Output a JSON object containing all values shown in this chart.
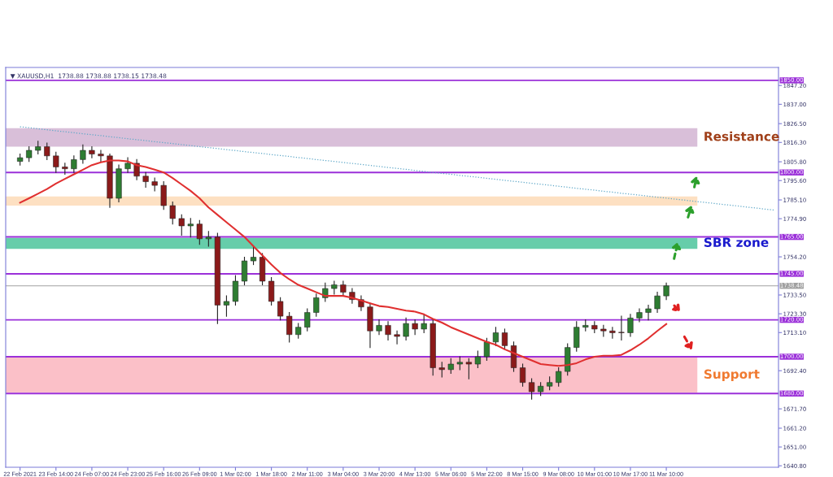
{
  "chart_data": {
    "type": "candlestick",
    "categories": [
      "22 Feb 2021",
      null,
      null,
      null,
      "23 Feb 14:00",
      null,
      null,
      null,
      "24 Feb 07:00",
      null,
      null,
      null,
      "24 Feb 23:00",
      null,
      null,
      null,
      "25 Feb 16:00",
      null,
      null,
      null,
      "26 Feb 09:00",
      null,
      null,
      null,
      "1 Mar 02:00",
      null,
      null,
      null,
      "1 Mar 18:00",
      null,
      null,
      null,
      "2 Mar 11:00",
      null,
      null,
      null,
      "3 Mar 04:00",
      null,
      null,
      null,
      "3 Mar 20:00",
      null,
      null,
      null,
      "4 Mar 13:00",
      null,
      null,
      null,
      "5 Mar 06:00",
      null,
      null,
      null,
      "5 Mar 22:00",
      null,
      null,
      null,
      "8 Mar 15:00",
      null,
      null,
      null,
      "9 Mar 08:00",
      null,
      null,
      null,
      "10 Mar 01:00",
      null,
      null,
      null,
      "10 Mar 17:00",
      null,
      null,
      null,
      "11 Mar 10:00",
      null,
      null,
      null,
      null,
      null,
      null,
      null,
      null,
      null,
      null,
      null,
      null
    ],
    "series": [
      {
        "ohlc": [
          [
            1806,
            1810,
            1804,
            1808
          ],
          [
            1808,
            1814,
            1806,
            1812
          ],
          [
            1812,
            1817,
            1810,
            1814
          ],
          [
            1814,
            1816,
            1807,
            1809
          ],
          [
            1809,
            1811,
            1800,
            1803
          ],
          [
            1803,
            1805,
            1799,
            1802
          ],
          [
            1802,
            1809,
            1800,
            1807
          ],
          [
            1807,
            1815,
            1805,
            1812
          ],
          [
            1812,
            1814,
            1808,
            1810
          ],
          [
            1810,
            1812,
            1806,
            1809
          ],
          [
            1809,
            1810,
            1781,
            1786
          ],
          [
            1786,
            1804,
            1784,
            1802
          ],
          [
            1802,
            1808,
            1800,
            1805
          ],
          [
            1805,
            1807,
            1796,
            1798
          ],
          [
            1798,
            1800,
            1792,
            1795
          ],
          [
            1795,
            1797,
            1790,
            1793
          ],
          [
            1793,
            1795,
            1780,
            1782
          ],
          [
            1782,
            1784,
            1772,
            1775
          ],
          [
            1775,
            1777,
            1766,
            1771
          ],
          [
            1771,
            1775,
            1765,
            1772
          ],
          [
            1772,
            1774,
            1761,
            1764
          ],
          [
            1764,
            1768,
            1760,
            1765
          ],
          [
            1765,
            1767,
            1718,
            1728
          ],
          [
            1728,
            1733,
            1722,
            1730
          ],
          [
            1730,
            1744,
            1728,
            1741
          ],
          [
            1741,
            1754,
            1739,
            1752
          ],
          [
            1752,
            1760,
            1750,
            1754
          ],
          [
            1754,
            1756,
            1739,
            1741
          ],
          [
            1741,
            1743,
            1728,
            1730
          ],
          [
            1730,
            1732,
            1720,
            1722
          ],
          [
            1722,
            1724,
            1708,
            1712
          ],
          [
            1712,
            1718,
            1710,
            1716
          ],
          [
            1716,
            1726,
            1714,
            1724
          ],
          [
            1724,
            1734,
            1722,
            1732
          ],
          [
            1732,
            1740,
            1730,
            1737
          ],
          [
            1737,
            1741,
            1734,
            1739
          ],
          [
            1739,
            1741,
            1733,
            1735
          ],
          [
            1735,
            1737,
            1729,
            1731
          ],
          [
            1731,
            1733,
            1725,
            1727
          ],
          [
            1727,
            1729,
            1705,
            1714
          ],
          [
            1714,
            1720,
            1712,
            1717
          ],
          [
            1717,
            1719,
            1709,
            1712
          ],
          [
            1712,
            1714,
            1707,
            1711
          ],
          [
            1711,
            1721,
            1709,
            1718
          ],
          [
            1718,
            1720,
            1712,
            1715
          ],
          [
            1715,
            1723,
            1713,
            1718
          ],
          [
            1718,
            1720,
            1690,
            1694
          ],
          [
            1694,
            1697,
            1689,
            1693
          ],
          [
            1693,
            1699,
            1691,
            1696
          ],
          [
            1696,
            1700,
            1693,
            1697
          ],
          [
            1697,
            1699,
            1688,
            1696
          ],
          [
            1696,
            1703,
            1694,
            1700
          ],
          [
            1700,
            1710,
            1698,
            1708
          ],
          [
            1708,
            1716,
            1706,
            1713
          ],
          [
            1713,
            1715,
            1704,
            1706
          ],
          [
            1706,
            1708,
            1692,
            1694
          ],
          [
            1694,
            1696,
            1684,
            1686
          ],
          [
            1686,
            1688,
            1677,
            1681
          ],
          [
            1681,
            1686,
            1679,
            1684
          ],
          [
            1684,
            1689,
            1682,
            1686
          ],
          [
            1686,
            1694,
            1684,
            1692
          ],
          [
            1692,
            1707,
            1690,
            1705
          ],
          [
            1705,
            1719,
            1703,
            1716
          ],
          [
            1716,
            1720,
            1714,
            1717
          ],
          [
            1717,
            1719,
            1713,
            1715
          ],
          [
            1715,
            1717,
            1711,
            1714
          ],
          [
            1714,
            1716,
            1710,
            1713
          ],
          [
            1713,
            1722,
            1709,
            1713
          ],
          [
            1713,
            1723,
            1711,
            1721
          ],
          [
            1721,
            1726,
            1719,
            1724
          ],
          [
            1724,
            1728,
            1720,
            1726
          ],
          [
            1726,
            1735,
            1724,
            1733
          ],
          [
            1733,
            1740,
            1731,
            1738.48
          ],
          null,
          null,
          null,
          null,
          null,
          null,
          null,
          null,
          null,
          null,
          null,
          null
        ],
        "colors": [
          "#2e7d32",
          "#2e7d32",
          "#2e7d32",
          "#8b1a1a",
          "#8b1a1a",
          "#8b1a1a",
          "#2e7d32",
          "#2e7d32",
          "#8b1a1a",
          "#8b1a1a",
          "#8b1a1a",
          "#2e7d32",
          "#2e7d32",
          "#8b1a1a",
          "#8b1a1a",
          "#8b1a1a",
          "#8b1a1a",
          "#8b1a1a",
          "#8b1a1a",
          "#2e7d32",
          "#8b1a1a",
          "#2e7d32",
          "#8b1a1a",
          "#2e7d32",
          "#2e7d32",
          "#2e7d32",
          "#2e7d32",
          "#8b1a1a",
          "#8b1a1a",
          "#8b1a1a",
          "#8b1a1a",
          "#2e7d32",
          "#2e7d32",
          "#2e7d32",
          "#2e7d32",
          "#2e7d32",
          "#8b1a1a",
          "#8b1a1a",
          "#8b1a1a",
          "#8b1a1a",
          "#2e7d32",
          "#8b1a1a",
          "#8b1a1a",
          "#2e7d32",
          "#8b1a1a",
          "#2e7d32",
          "#8b1a1a",
          "#8b1a1a",
          "#2e7d32",
          "#2e7d32",
          "#8b1a1a",
          "#2e7d32",
          "#2e7d32",
          "#2e7d32",
          "#8b1a1a",
          "#8b1a1a",
          "#8b1a1a",
          "#8b1a1a",
          "#2e7d32",
          "#2e7d32",
          "#2e7d32",
          "#2e7d32",
          "#2e7d32",
          "#2e7d32",
          "#8b1a1a",
          "#8b1a1a",
          "#8b1a1a",
          "#8b1a1a",
          "#2e7d32",
          "#2e7d32",
          "#2e7d32",
          "#2e7d32",
          "#2e7d32",
          null,
          null,
          null,
          null,
          null,
          null,
          null,
          null,
          null,
          null,
          null,
          null
        ]
      },
      {
        "type": "line",
        "color": "#e03030",
        "line_style": "solid",
        "values": [
          1783.6,
          1786,
          1788.5,
          1791,
          1794,
          1796.5,
          1799,
          1801.5,
          1804,
          1805.5,
          1806.5,
          1806.5,
          1806,
          1804,
          1803,
          1801.5,
          1800,
          1797,
          1793.5,
          1790,
          1786,
          1781,
          1777,
          1773,
          1769,
          1765,
          1760,
          1755,
          1750,
          1745.5,
          1742,
          1739,
          1737,
          1735,
          1733,
          1733,
          1733,
          1732,
          1730.5,
          1729,
          1727.5,
          1727,
          1726,
          1725,
          1724.5,
          1723,
          1720.5,
          1718.5,
          1716,
          1714,
          1712,
          1710,
          1708,
          1706.5,
          1704,
          1702,
          1700,
          1698,
          1696,
          1695.5,
          1695,
          1695.5,
          1696.5,
          1698.5,
          1700,
          1700.5,
          1700.5,
          1701,
          1703.5,
          1706.5,
          1710,
          1714,
          1717.7,
          null,
          null,
          null,
          null,
          null,
          null,
          null,
          null,
          null,
          null,
          null,
          null
        ]
      },
      {
        "type": "line",
        "color": "#5fa8c8",
        "line_style": "dotted",
        "values": [
          1824.8,
          1824.3,
          1823.7,
          1823.2,
          1822.6,
          1822.1,
          1821.6,
          1821.0,
          1820.5,
          1820.0,
          1819.4,
          1818.9,
          1818.3,
          1817.8,
          1817.3,
          1816.7,
          1816.2,
          1815.7,
          1815.1,
          1814.6,
          1814.0,
          1813.5,
          1813.0,
          1812.4,
          1811.9,
          1811.3,
          1810.8,
          1810.3,
          1809.7,
          1809.2,
          1808.7,
          1808.1,
          1807.6,
          1807.0,
          1806.5,
          1806.0,
          1805.4,
          1804.9,
          1804.4,
          1803.8,
          1803.3,
          1802.7,
          1802.2,
          1801.7,
          1801.1,
          1800.6,
          1800.0,
          1799.5,
          1799.0,
          1798.4,
          1797.9,
          1797.4,
          1796.8,
          1796.3,
          1795.7,
          1795.2,
          1794.7,
          1794.1,
          1793.6,
          1793.1,
          1792.5,
          1792.0,
          1791.4,
          1790.9,
          1790.4,
          1789.8,
          1789.3,
          1788.7,
          1788.2,
          1787.7,
          1787.1,
          1786.6,
          1786.1,
          1785.5,
          1785.0,
          1784.4,
          1783.9,
          1783.4,
          1782.8,
          1782.3,
          1781.8,
          1781.2,
          1780.7,
          1780.1,
          1779.6
        ]
      }
    ],
    "ylim": [
      1640,
      1857
    ],
    "yticks": [
      {
        "value": 1847.2,
        "label": "1847.20"
      },
      {
        "value": 1837.0,
        "label": "1837.00"
      },
      {
        "value": 1826.5,
        "label": "1826.50"
      },
      {
        "value": 1816.3,
        "label": "1816.30"
      },
      {
        "value": 1805.8,
        "label": "1805.80"
      },
      {
        "value": 1795.6,
        "label": "1795.60"
      },
      {
        "value": 1785.1,
        "label": "1785.10"
      },
      {
        "value": 1774.9,
        "label": "1774.90"
      },
      {
        "value": 1754.2,
        "label": "1754.20"
      },
      {
        "value": 1733.5,
        "label": "1733.50"
      },
      {
        "value": 1723.3,
        "label": "1723.30"
      },
      {
        "value": 1713.1,
        "label": "1713.10"
      },
      {
        "value": 1692.4,
        "label": "1692.40"
      },
      {
        "value": 1671.7,
        "label": "1671.70"
      },
      {
        "value": 1661.2,
        "label": "1661.20"
      },
      {
        "value": 1651.0,
        "label": "1651.00"
      },
      {
        "value": 1640.8,
        "label": "1640.80"
      }
    ],
    "ref_lines": [
      {
        "axis": "y",
        "value": 1850,
        "label": "1850.00",
        "color": "#9b30d9"
      },
      {
        "axis": "y",
        "value": 1800,
        "label": "1800.00",
        "color": "#9b30d9"
      },
      {
        "axis": "y",
        "value": 1765,
        "label": "1765.00",
        "color": "#9b30d9"
      },
      {
        "axis": "y",
        "value": 1745,
        "label": "1745.00",
        "color": "#9b30d9"
      },
      {
        "axis": "y",
        "value": 1738.48,
        "label": "1738.48",
        "color": "#a0a0a0"
      },
      {
        "axis": "y",
        "value": 1720,
        "label": "1720.00",
        "color": "#9b30d9"
      },
      {
        "axis": "y",
        "value": 1700,
        "label": "1700.00",
        "color": "#9b30d9"
      },
      {
        "axis": "y",
        "value": 1680,
        "label": "1680.00",
        "color": "#9b30d9"
      }
    ],
    "bands": [
      {
        "axis": "y",
        "from": 1814,
        "to": 1824,
        "label": "Resistance",
        "color": "#d9bfd9"
      },
      {
        "axis": "y",
        "from": 1782,
        "to": 1787,
        "color": "#fde0c2"
      },
      {
        "axis": "y",
        "from": 1758.5,
        "to": 1764.5,
        "label": "SBR zone",
        "color": "#66cdaa"
      },
      {
        "axis": "y",
        "from": 1680.5,
        "to": 1699.5,
        "label": "Support",
        "color": "#fbc0c8"
      }
    ],
    "annotations": [
      "▼ XAUUSD,H1  1738.88 1738.88 1738.15 1738.48"
    ],
    "grid": false,
    "legend": false
  }
}
